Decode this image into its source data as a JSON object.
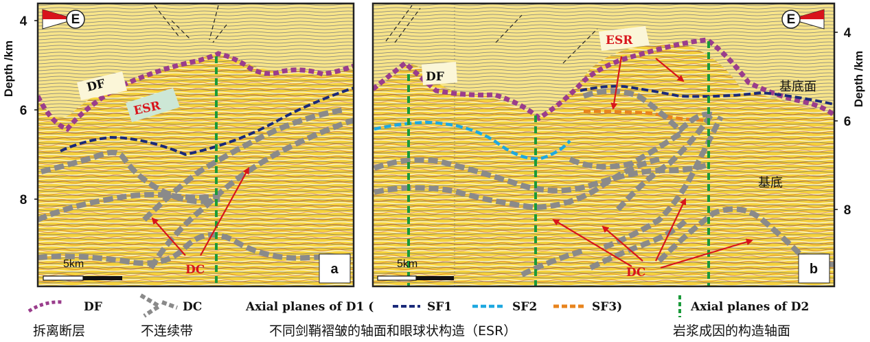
{
  "y_axis": {
    "label": "Depth /km",
    "ticks": [
      "4",
      "6",
      "8"
    ]
  },
  "panels": [
    {
      "tag": "a",
      "scale_bar": "5km",
      "compass": "E",
      "labels": {
        "df": "DF",
        "esr": "ESR",
        "dc": "DC"
      }
    },
    {
      "tag": "b",
      "scale_bar": "5km",
      "compass": "E",
      "labels": {
        "df": "DF",
        "esr": "ESR",
        "dc": "DC",
        "basement_surface": "基底面",
        "basement": "基底"
      }
    }
  ],
  "legend": {
    "df": {
      "label": "DF",
      "cn": "拆离断层",
      "color": "#9a3d8c"
    },
    "dc": {
      "label": "DC",
      "cn": "不连续带",
      "color": "#8a8a8a"
    },
    "d1": {
      "title": "Axial planes of D1 (",
      "sf1": "SF1",
      "sf2": "SF2",
      "sf3": "SF3)",
      "cn": "不同剑鞘褶皱的轴面和眼球状构造（ESR）",
      "colors": {
        "sf1": "#1a2a7a",
        "sf2": "#1ea8e0",
        "sf3": "#e8841e"
      }
    },
    "d2": {
      "title": "Axial planes of D2",
      "cn": "岩浆成因的构造轴面",
      "color": "#1a9a3a"
    }
  },
  "colors": {
    "esr_text": "#d8141b",
    "arrow": "#d8141b",
    "seismic_bg": "#f7d640"
  }
}
